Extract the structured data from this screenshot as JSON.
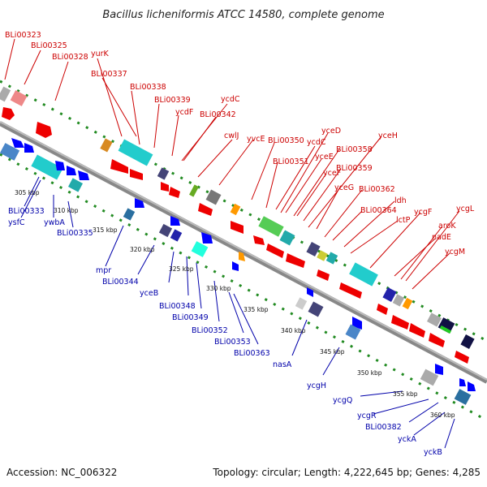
{
  "title": "Bacillus licheniformis ATCC 14580, complete genome",
  "footer": {
    "accession": "Accession: NC_006322",
    "stats": "Topology: circular; Length: 4,222,645 bp; Genes: 4,285"
  },
  "colors": {
    "top_label": "#cc0000",
    "bottom_label": "#0000aa",
    "backbone": "#888888",
    "ring_dot": "#228b22"
  },
  "top_labels": [
    "BLi00323",
    "BLi00325",
    "BLi00328",
    "yurK",
    "BLi00337",
    "BLi00338",
    "BLi00339",
    "ycdF",
    "ycdC",
    "BLi00342",
    "cwlJ",
    "yvcE",
    "BLi00350",
    "ycdC",
    "yceD",
    "yceE",
    "BLi00351",
    "BLi00358",
    "yceF",
    "yceH",
    "BLi00359",
    "yceG",
    "BLi00362",
    "ldh",
    "BLi00364",
    "lctP",
    "ycgF",
    "ycgL",
    "aroK",
    "nadE",
    "ycgM"
  ],
  "bottom_labels": [
    "BLi00333",
    "ysfC",
    "ywbA",
    "BLi00335",
    "mpr",
    "BLi00344",
    "yceB",
    "BLi00348",
    "BLi00349",
    "BLi00352",
    "BLi00353",
    "BLi00363",
    "nasA",
    "ycgH",
    "ycgQ",
    "ycgR",
    "BLi00382",
    "yckA",
    "yckB"
  ],
  "ticks": [
    "305 kbp",
    "310 kbp",
    "315 kbp",
    "320 kbp",
    "325 kbp",
    "330 kbp",
    "335 kbp",
    "340 kbp",
    "345 kbp",
    "350 kbp",
    "355 kbp",
    "360 kbp"
  ]
}
